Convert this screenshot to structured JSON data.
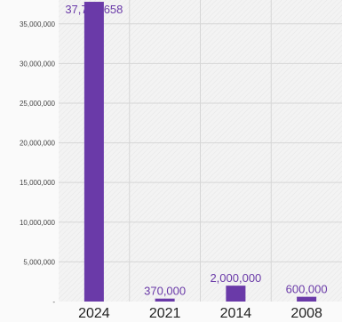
{
  "chart_data": {
    "type": "bar",
    "categories": [
      "2024",
      "2021",
      "2014",
      "2008"
    ],
    "values": [
      37772658,
      370000,
      2000000,
      600000
    ],
    "data_labels": [
      "37,772,658",
      "370,000",
      "2,000,000",
      "600,000"
    ],
    "yticks": [
      {
        "value": 0,
        "label": "-"
      },
      {
        "value": 5000000,
        "label": "5,000,000"
      },
      {
        "value": 10000000,
        "label": "10,000,000"
      },
      {
        "value": 15000000,
        "label": "15,000,000"
      },
      {
        "value": 20000000,
        "label": "20,000,000"
      },
      {
        "value": 25000000,
        "label": "25,000,000"
      },
      {
        "value": 30000000,
        "label": "30,000,000"
      },
      {
        "value": 35000000,
        "label": "35,000,000"
      }
    ],
    "ylim": [
      0,
      38000000
    ],
    "grid": true,
    "colors": {
      "bar": "#6a3aa8",
      "label": "#6a3aa8",
      "grid": "#d6d6d6",
      "background": "#f2f2f2"
    }
  }
}
